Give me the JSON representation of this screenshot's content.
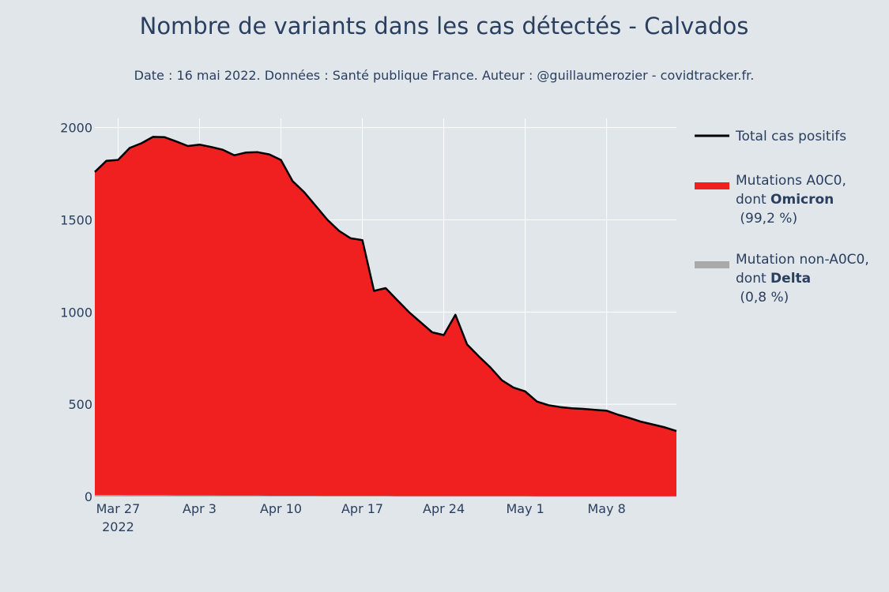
{
  "chart_data": {
    "type": "area",
    "title": "Nombre de variants dans les cas détectés - Calvados",
    "subtitle": "Date : 16 mai 2022. Données : Santé publique France. Auteur : @guillaumerozier - covidtracker.fr.",
    "x_start": "2022-03-25",
    "x": [
      "2022-03-25",
      "2022-03-26",
      "2022-03-27",
      "2022-03-28",
      "2022-03-29",
      "2022-03-30",
      "2022-03-31",
      "2022-04-01",
      "2022-04-02",
      "2022-04-03",
      "2022-04-04",
      "2022-04-05",
      "2022-04-06",
      "2022-04-07",
      "2022-04-08",
      "2022-04-09",
      "2022-04-10",
      "2022-04-11",
      "2022-04-12",
      "2022-04-13",
      "2022-04-14",
      "2022-04-15",
      "2022-04-16",
      "2022-04-17",
      "2022-04-18",
      "2022-04-19",
      "2022-04-20",
      "2022-04-21",
      "2022-04-22",
      "2022-04-23",
      "2022-04-24",
      "2022-04-25",
      "2022-04-26",
      "2022-04-27",
      "2022-04-28",
      "2022-04-29",
      "2022-04-30",
      "2022-05-01",
      "2022-05-02",
      "2022-05-03",
      "2022-05-04",
      "2022-05-05",
      "2022-05-06",
      "2022-05-07",
      "2022-05-08",
      "2022-05-09",
      "2022-05-10",
      "2022-05-11",
      "2022-05-12",
      "2022-05-13",
      "2022-05-14"
    ],
    "series": [
      {
        "name": "Total cas positifs",
        "color": "#000000",
        "values": [
          1760,
          1820,
          1825,
          1890,
          1915,
          1950,
          1948,
          1925,
          1900,
          1908,
          1895,
          1880,
          1850,
          1865,
          1867,
          1855,
          1825,
          1710,
          1650,
          1575,
          1500,
          1440,
          1400,
          1390,
          1115,
          1130,
          1065,
          1000,
          945,
          890,
          875,
          985,
          825,
          760,
          700,
          630,
          590,
          570,
          515,
          495,
          485,
          478,
          475,
          470,
          465,
          443,
          425,
          405,
          390,
          375,
          355
        ]
      },
      {
        "name": "Mutations A0C0, dont Omicron (99,2 %)",
        "color": "#f02020",
        "values": [
          1760,
          1820,
          1825,
          1890,
          1915,
          1950,
          1948,
          1925,
          1900,
          1908,
          1895,
          1880,
          1850,
          1865,
          1867,
          1855,
          1825,
          1710,
          1650,
          1575,
          1500,
          1440,
          1400,
          1390,
          1115,
          1130,
          1065,
          1000,
          945,
          890,
          875,
          985,
          825,
          760,
          700,
          630,
          590,
          570,
          515,
          495,
          485,
          478,
          475,
          470,
          465,
          443,
          425,
          405,
          390,
          375,
          355
        ]
      },
      {
        "name": "Mutation non-A0C0, dont Delta (0,8 %)",
        "color": "#a9a9a9",
        "values": [
          8,
          8,
          8,
          7,
          7,
          7,
          7,
          6,
          6,
          6,
          6,
          5,
          5,
          5,
          5,
          4,
          4,
          4,
          4,
          4,
          3,
          3,
          3,
          3,
          3,
          3,
          2,
          2,
          2,
          2,
          2,
          2,
          2,
          2,
          2,
          2,
          2,
          2,
          1,
          1,
          1,
          1,
          1,
          1,
          1,
          1,
          1,
          1,
          1,
          1,
          1
        ]
      }
    ],
    "ylim": [
      0,
      2050
    ],
    "y_ticks": [
      0,
      500,
      1000,
      1500,
      2000
    ],
    "y_tick_labels": [
      "0",
      "500",
      "1000",
      "1500",
      "2000"
    ],
    "x_ticks": [
      {
        "date": "2022-03-27",
        "label": "Mar 27",
        "sublabel": "2022"
      },
      {
        "date": "2022-04-03",
        "label": "Apr 3",
        "sublabel": ""
      },
      {
        "date": "2022-04-10",
        "label": "Apr 10",
        "sublabel": ""
      },
      {
        "date": "2022-04-17",
        "label": "Apr 17",
        "sublabel": ""
      },
      {
        "date": "2022-04-24",
        "label": "Apr 24",
        "sublabel": ""
      },
      {
        "date": "2022-05-01",
        "label": "May 1",
        "sublabel": ""
      },
      {
        "date": "2022-05-08",
        "label": "May 8",
        "sublabel": ""
      }
    ],
    "legend": {
      "placement": "right",
      "entries": [
        {
          "lines": [
            [
              {
                "t": "Total cas positifs",
                "b": false
              }
            ]
          ],
          "color": "#000000",
          "kind": "line"
        },
        {
          "lines": [
            [
              {
                "t": "Mutations A0C0,",
                "b": false
              }
            ],
            [
              {
                "t": "dont ",
                "b": false
              },
              {
                "t": "Omicron",
                "b": true
              }
            ],
            [
              {
                "t": " (99,2 %)",
                "b": false
              }
            ]
          ],
          "color": "#f02020",
          "kind": "bar"
        },
        {
          "lines": [
            [
              {
                "t": "Mutation non-A0C0,",
                "b": false
              }
            ],
            [
              {
                "t": "dont ",
                "b": false
              },
              {
                "t": "Delta",
                "b": true
              }
            ],
            [
              {
                "t": " (0,8 %)",
                "b": false
              }
            ]
          ],
          "color": "#a9a9a9",
          "kind": "bar"
        }
      ]
    },
    "grid": true
  }
}
